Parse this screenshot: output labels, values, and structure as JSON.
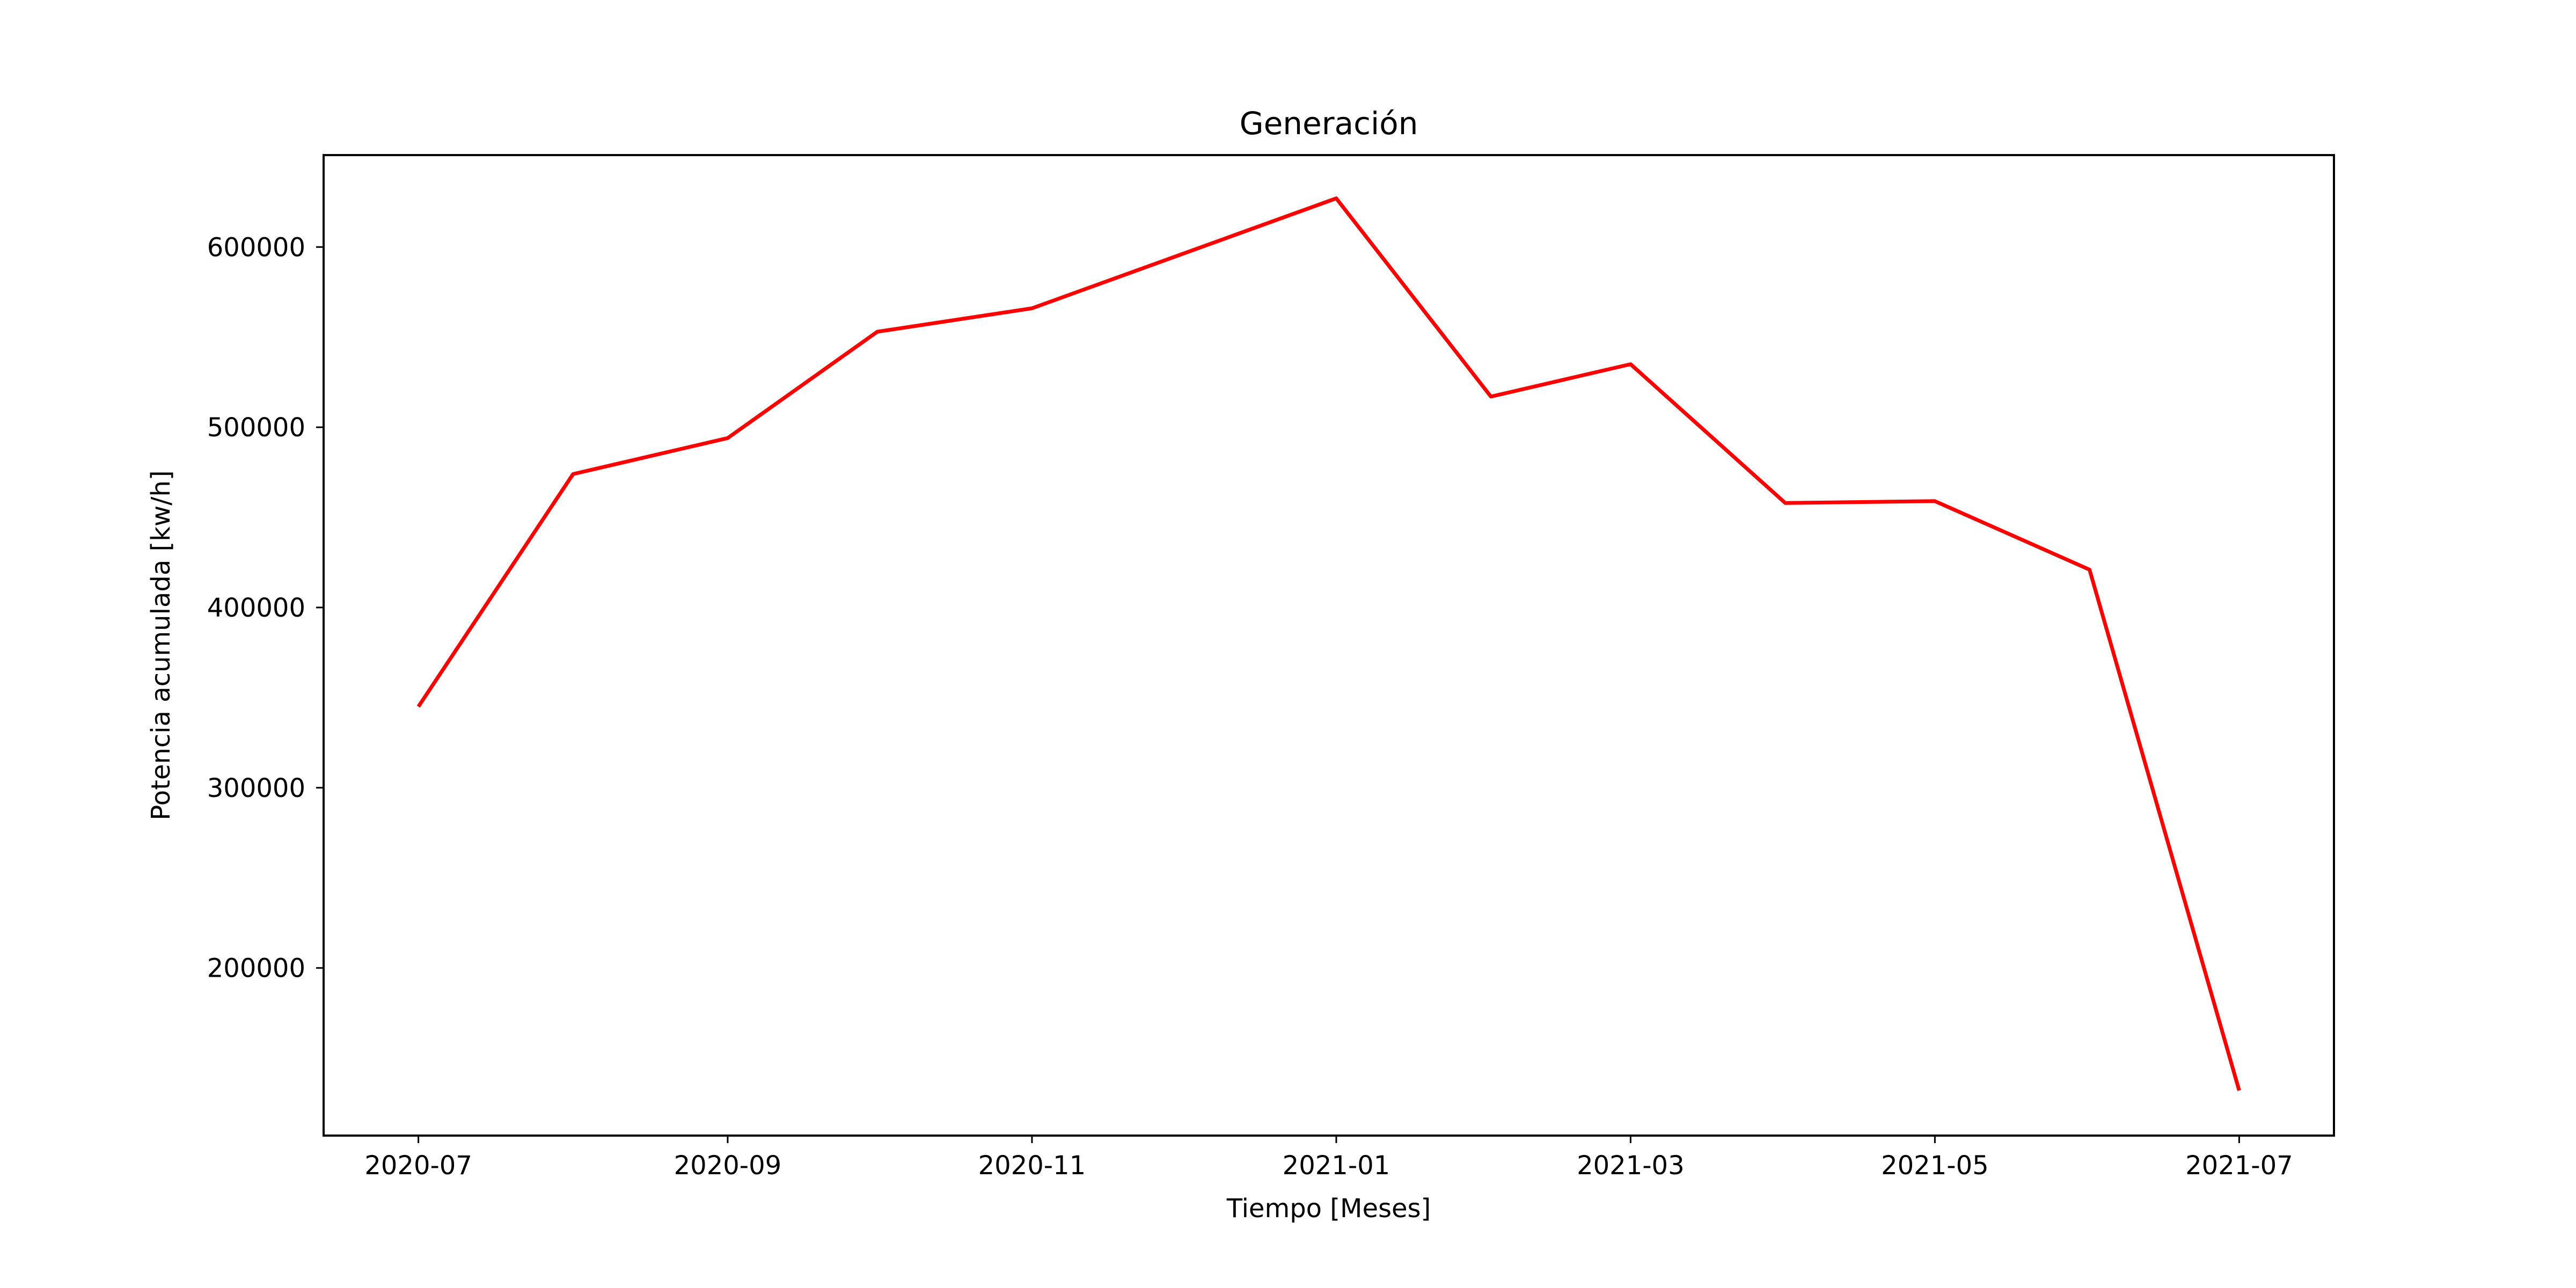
{
  "chart_data": {
    "type": "line",
    "title": "Generación",
    "xlabel": "Tiempo [Meses]",
    "ylabel": "Potencia acumulada [kw/h]",
    "x_ticks": [
      "2020-07",
      "2020-09",
      "2020-11",
      "2021-01",
      "2021-03",
      "2021-05",
      "2021-07"
    ],
    "y_ticks": [
      200000,
      300000,
      400000,
      500000,
      600000
    ],
    "xlim": [
      "2020-06-12",
      "2021-07-20"
    ],
    "ylim": [
      107000,
      651000
    ],
    "grid": false,
    "series": [
      {
        "color": "#ff0000",
        "x": [
          "2020-07-01",
          "2020-08-01",
          "2020-09-01",
          "2020-10-01",
          "2020-11-01",
          "2020-12-01",
          "2021-01-01",
          "2021-02-01",
          "2021-03-01",
          "2021-04-01",
          "2021-05-01",
          "2021-06-01",
          "2021-07-01"
        ],
        "values": [
          345000,
          474000,
          494000,
          553000,
          566000,
          596000,
          627000,
          517000,
          535000,
          458000,
          459000,
          421000,
          132000
        ]
      }
    ]
  }
}
